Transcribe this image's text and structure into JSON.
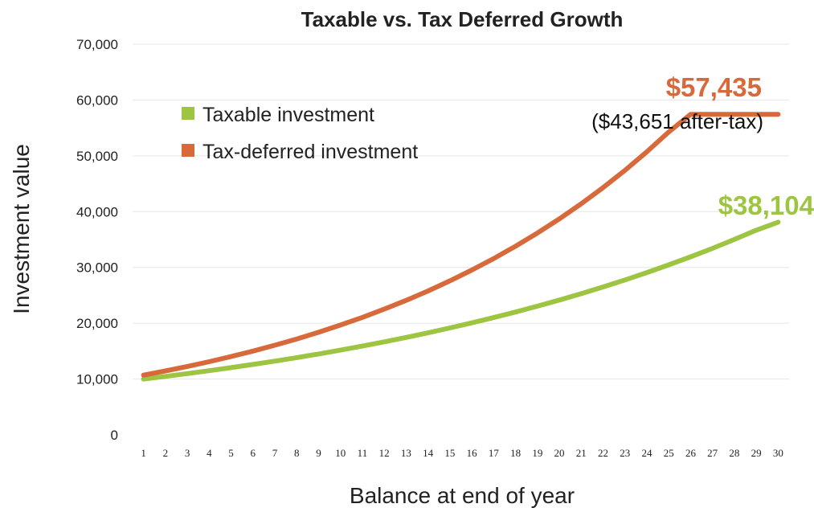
{
  "chart_data": {
    "type": "line",
    "title": "Taxable vs. Tax Deferred Growth",
    "xlabel": "Balance at end of year",
    "ylabel": "Investment value",
    "x": [
      1,
      2,
      3,
      4,
      5,
      6,
      7,
      8,
      9,
      10,
      11,
      12,
      13,
      14,
      15,
      16,
      17,
      18,
      19,
      20,
      21,
      22,
      23,
      24,
      25,
      26,
      27,
      28,
      29,
      30
    ],
    "ylim": [
      0,
      70000
    ],
    "yticks": [
      "0",
      "10,000",
      "20,000",
      "30,000",
      "40,000",
      "50,000",
      "60,000",
      "70,000"
    ],
    "ytick_values": [
      0,
      10000,
      20000,
      30000,
      40000,
      50000,
      60000,
      70000
    ],
    "grid": true,
    "legend_position": "top-left",
    "series": [
      {
        "name": "Taxable investment",
        "color": "#9dc541",
        "values": [
          10000,
          10475,
          10973,
          11494,
          12040,
          12612,
          13211,
          13838,
          14496,
          15184,
          15906,
          16661,
          17453,
          18282,
          19150,
          20060,
          21013,
          22011,
          23056,
          24152,
          25299,
          26501,
          27759,
          29078,
          30459,
          31906,
          33422,
          35009,
          36672,
          38104
        ]
      },
      {
        "name": "Tax-deferred investment",
        "color": "#d8693a",
        "values": [
          10700,
          11449,
          12250,
          13108,
          14026,
          15007,
          16058,
          17182,
          18385,
          19672,
          21049,
          22522,
          24098,
          25785,
          27590,
          29522,
          31588,
          33799,
          36165,
          38697,
          41406,
          44304,
          47405,
          50724,
          54274,
          57435,
          57435,
          57435,
          57435,
          57435
        ]
      }
    ],
    "annotations": {
      "deferred_end": "$57,435",
      "deferred_after_tax": "($43,651 after-tax)",
      "taxable_end": "$38,104"
    }
  }
}
